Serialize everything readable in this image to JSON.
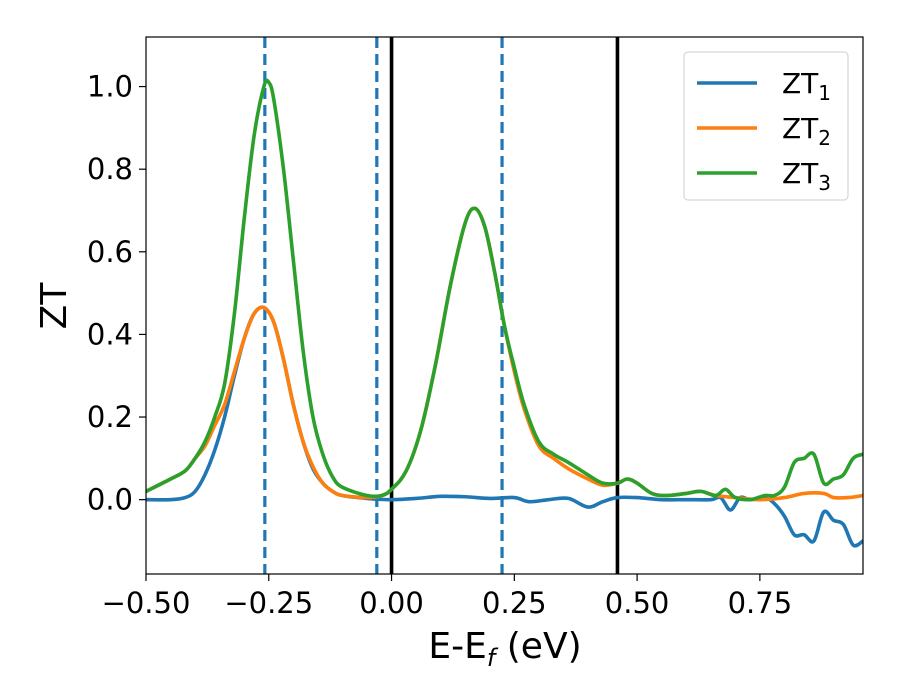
{
  "chart_data": {
    "type": "line",
    "xlabel": "E-E",
    "xlabel_sub": "f",
    "xlabel_unit": " (eV)",
    "ylabel": "ZT",
    "xlim": [
      -0.5,
      0.96
    ],
    "ylim": [
      -0.18,
      1.12
    ],
    "xticks": [
      -0.5,
      -0.25,
      0.0,
      0.25,
      0.5,
      0.75
    ],
    "xtick_labels": [
      "−0.50",
      "−0.25",
      "0.00",
      "0.25",
      "0.50",
      "0.75"
    ],
    "yticks": [
      0.0,
      0.2,
      0.4,
      0.6,
      0.8,
      1.0
    ],
    "ytick_labels": [
      "0.0",
      "0.2",
      "0.4",
      "0.6",
      "0.8",
      "1.0"
    ],
    "grid": false,
    "legend_position": "top-right",
    "vlines": [
      {
        "x": -0.258,
        "style": "dashed",
        "color": "#1f77b4"
      },
      {
        "x": -0.03,
        "style": "dashed",
        "color": "#1f77b4"
      },
      {
        "x": 0.0,
        "style": "solid",
        "color": "#000000"
      },
      {
        "x": 0.225,
        "style": "dashed",
        "color": "#1f77b4"
      },
      {
        "x": 0.46,
        "style": "solid",
        "color": "#000000"
      }
    ],
    "series": [
      {
        "name": "ZT",
        "name_sub": "1",
        "color": "#1f77b4",
        "points": [
          [
            -0.5,
            0.0
          ],
          [
            -0.45,
            0.0
          ],
          [
            -0.42,
            0.005
          ],
          [
            -0.4,
            0.02
          ],
          [
            -0.38,
            0.06
          ],
          [
            -0.36,
            0.12
          ],
          [
            -0.34,
            0.2
          ],
          [
            -0.32,
            0.3
          ],
          [
            -0.3,
            0.39
          ],
          [
            -0.28,
            0.45
          ],
          [
            -0.26,
            0.465
          ],
          [
            -0.24,
            0.43
          ],
          [
            -0.22,
            0.34
          ],
          [
            -0.2,
            0.23
          ],
          [
            -0.18,
            0.14
          ],
          [
            -0.16,
            0.075
          ],
          [
            -0.14,
            0.04
          ],
          [
            -0.12,
            0.02
          ],
          [
            -0.1,
            0.01
          ],
          [
            -0.05,
            0.003
          ],
          [
            0.0,
            0.0
          ],
          [
            0.05,
            0.003
          ],
          [
            0.1,
            0.008
          ],
          [
            0.15,
            0.007
          ],
          [
            0.2,
            0.003
          ],
          [
            0.25,
            0.005
          ],
          [
            0.28,
            -0.005
          ],
          [
            0.32,
            0.0
          ],
          [
            0.36,
            0.003
          ],
          [
            0.4,
            -0.018
          ],
          [
            0.43,
            -0.005
          ],
          [
            0.46,
            0.005
          ],
          [
            0.5,
            0.005
          ],
          [
            0.55,
            0.0
          ],
          [
            0.6,
            0.0
          ],
          [
            0.65,
            0.0
          ],
          [
            0.67,
            0.005
          ],
          [
            0.69,
            -0.025
          ],
          [
            0.71,
            0.005
          ],
          [
            0.73,
            0.0
          ],
          [
            0.76,
            0.005
          ],
          [
            0.78,
            -0.01
          ],
          [
            0.8,
            -0.04
          ],
          [
            0.82,
            -0.085
          ],
          [
            0.84,
            -0.085
          ],
          [
            0.86,
            -0.1
          ],
          [
            0.88,
            -0.03
          ],
          [
            0.9,
            -0.05
          ],
          [
            0.92,
            -0.06
          ],
          [
            0.94,
            -0.11
          ],
          [
            0.96,
            -0.1
          ]
        ]
      },
      {
        "name": "ZT",
        "name_sub": "2",
        "color": "#ff7f0e",
        "points": [
          [
            -0.5,
            0.02
          ],
          [
            -0.45,
            0.05
          ],
          [
            -0.42,
            0.07
          ],
          [
            -0.4,
            0.1
          ],
          [
            -0.38,
            0.13
          ],
          [
            -0.36,
            0.18
          ],
          [
            -0.34,
            0.23
          ],
          [
            -0.32,
            0.31
          ],
          [
            -0.3,
            0.39
          ],
          [
            -0.28,
            0.45
          ],
          [
            -0.26,
            0.465
          ],
          [
            -0.24,
            0.43
          ],
          [
            -0.22,
            0.34
          ],
          [
            -0.2,
            0.23
          ],
          [
            -0.18,
            0.14
          ],
          [
            -0.16,
            0.08
          ],
          [
            -0.14,
            0.04
          ],
          [
            -0.12,
            0.02
          ],
          [
            -0.1,
            0.01
          ],
          [
            -0.05,
            0.005
          ],
          [
            -0.02,
            0.01
          ],
          [
            0.0,
            0.025
          ],
          [
            0.03,
            0.07
          ],
          [
            0.06,
            0.17
          ],
          [
            0.09,
            0.33
          ],
          [
            0.12,
            0.52
          ],
          [
            0.15,
            0.67
          ],
          [
            0.17,
            0.705
          ],
          [
            0.19,
            0.66
          ],
          [
            0.21,
            0.55
          ],
          [
            0.23,
            0.42
          ],
          [
            0.25,
            0.31
          ],
          [
            0.27,
            0.22
          ],
          [
            0.3,
            0.13
          ],
          [
            0.33,
            0.1
          ],
          [
            0.36,
            0.075
          ],
          [
            0.4,
            0.05
          ],
          [
            0.43,
            0.035
          ],
          [
            0.46,
            0.04
          ],
          [
            0.48,
            0.05
          ],
          [
            0.5,
            0.04
          ],
          [
            0.53,
            0.015
          ],
          [
            0.56,
            0.01
          ],
          [
            0.6,
            0.015
          ],
          [
            0.63,
            0.02
          ],
          [
            0.66,
            0.01
          ],
          [
            0.7,
            0.005
          ],
          [
            0.75,
            0.0
          ],
          [
            0.8,
            0.005
          ],
          [
            0.84,
            0.015
          ],
          [
            0.88,
            0.015
          ],
          [
            0.9,
            0.005
          ],
          [
            0.93,
            0.005
          ],
          [
            0.96,
            0.01
          ]
        ]
      },
      {
        "name": "ZT",
        "name_sub": "3",
        "color": "#2ca02c",
        "points": [
          [
            -0.5,
            0.02
          ],
          [
            -0.45,
            0.05
          ],
          [
            -0.42,
            0.07
          ],
          [
            -0.4,
            0.1
          ],
          [
            -0.38,
            0.14
          ],
          [
            -0.36,
            0.2
          ],
          [
            -0.34,
            0.28
          ],
          [
            -0.32,
            0.45
          ],
          [
            -0.3,
            0.68
          ],
          [
            -0.28,
            0.88
          ],
          [
            -0.26,
            1.0
          ],
          [
            -0.25,
            1.01
          ],
          [
            -0.24,
            0.97
          ],
          [
            -0.22,
            0.8
          ],
          [
            -0.2,
            0.58
          ],
          [
            -0.18,
            0.36
          ],
          [
            -0.16,
            0.2
          ],
          [
            -0.14,
            0.11
          ],
          [
            -0.12,
            0.055
          ],
          [
            -0.1,
            0.03
          ],
          [
            -0.05,
            0.01
          ],
          [
            -0.02,
            0.01
          ],
          [
            0.0,
            0.025
          ],
          [
            0.03,
            0.07
          ],
          [
            0.06,
            0.17
          ],
          [
            0.09,
            0.33
          ],
          [
            0.12,
            0.52
          ],
          [
            0.15,
            0.67
          ],
          [
            0.17,
            0.705
          ],
          [
            0.19,
            0.66
          ],
          [
            0.21,
            0.55
          ],
          [
            0.23,
            0.42
          ],
          [
            0.25,
            0.32
          ],
          [
            0.27,
            0.23
          ],
          [
            0.3,
            0.14
          ],
          [
            0.33,
            0.11
          ],
          [
            0.36,
            0.09
          ],
          [
            0.4,
            0.06
          ],
          [
            0.43,
            0.04
          ],
          [
            0.46,
            0.04
          ],
          [
            0.48,
            0.05
          ],
          [
            0.5,
            0.04
          ],
          [
            0.53,
            0.015
          ],
          [
            0.56,
            0.01
          ],
          [
            0.6,
            0.015
          ],
          [
            0.63,
            0.02
          ],
          [
            0.66,
            0.01
          ],
          [
            0.68,
            0.025
          ],
          [
            0.7,
            0.005
          ],
          [
            0.73,
            0.0
          ],
          [
            0.76,
            0.01
          ],
          [
            0.78,
            0.01
          ],
          [
            0.8,
            0.03
          ],
          [
            0.82,
            0.09
          ],
          [
            0.84,
            0.1
          ],
          [
            0.86,
            0.11
          ],
          [
            0.88,
            0.04
          ],
          [
            0.9,
            0.05
          ],
          [
            0.92,
            0.06
          ],
          [
            0.94,
            0.1
          ],
          [
            0.96,
            0.11
          ]
        ]
      }
    ]
  }
}
